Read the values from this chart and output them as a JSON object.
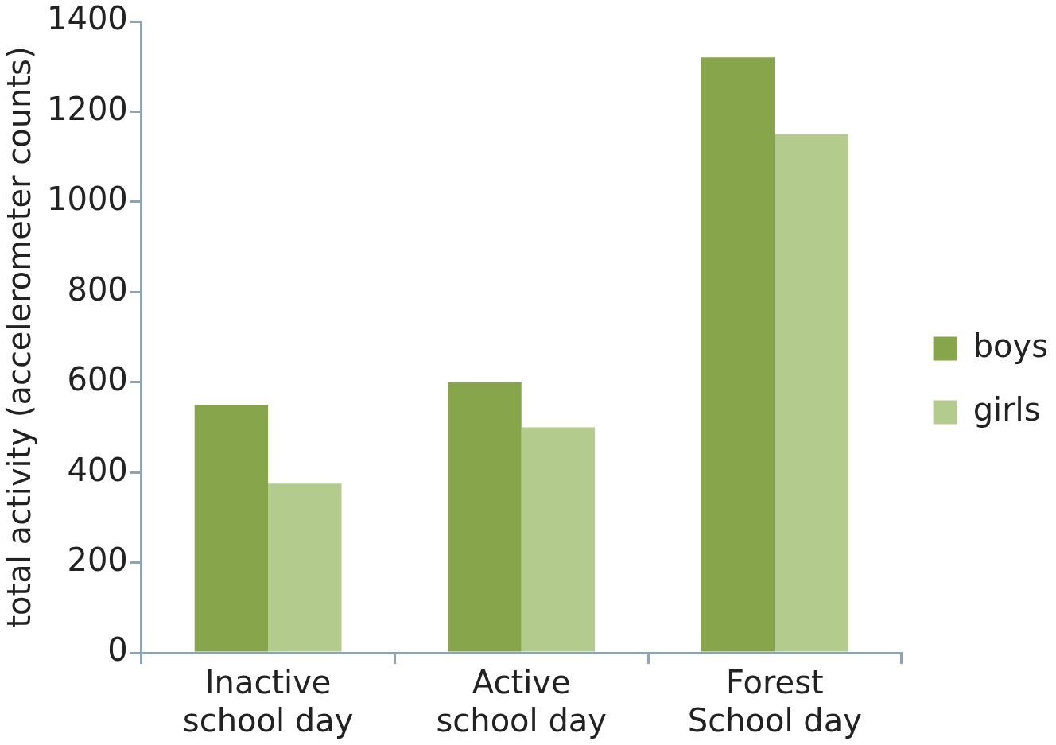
{
  "chart_data": {
    "type": "bar",
    "ylabel": "total activity (accelerometer counts)",
    "categories": [
      "Inactive school day",
      "Active school day",
      "Forest School day"
    ],
    "series": [
      {
        "name": "boys",
        "color": "#87a64b",
        "values": [
          550,
          600,
          1320
        ]
      },
      {
        "name": "girls",
        "color": "#b3cc8e",
        "values": [
          375,
          500,
          1150
        ]
      }
    ],
    "ylim": [
      0,
      1400
    ],
    "yticks": [
      0,
      200,
      400,
      600,
      800,
      1000,
      1200,
      1400
    ],
    "grid": false,
    "legend": "right"
  }
}
